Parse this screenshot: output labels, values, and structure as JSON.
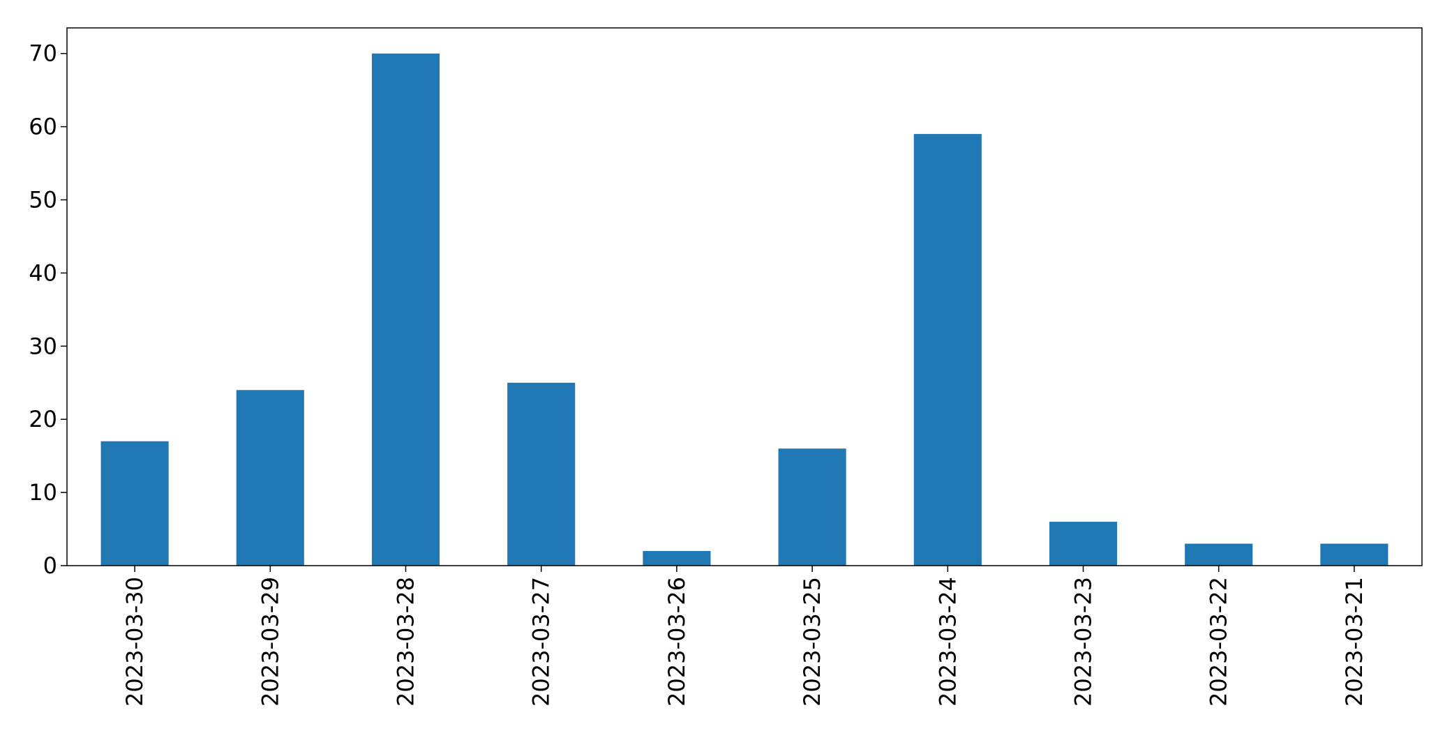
{
  "chart_data": {
    "type": "bar",
    "categories": [
      "2023-03-30",
      "2023-03-29",
      "2023-03-28",
      "2023-03-27",
      "2023-03-26",
      "2023-03-25",
      "2023-03-24",
      "2023-03-23",
      "2023-03-22",
      "2023-03-21"
    ],
    "values": [
      17,
      24,
      70,
      25,
      2,
      16,
      59,
      6,
      3,
      3
    ],
    "title": "",
    "xlabel": "",
    "ylabel": "",
    "ylim": [
      0,
      73.5
    ],
    "yticks": [
      0,
      10,
      20,
      30,
      40,
      50,
      60,
      70
    ],
    "grid": false,
    "legend": false,
    "bar_color": "#1f77b4",
    "x_tick_rotation": "vertical"
  }
}
